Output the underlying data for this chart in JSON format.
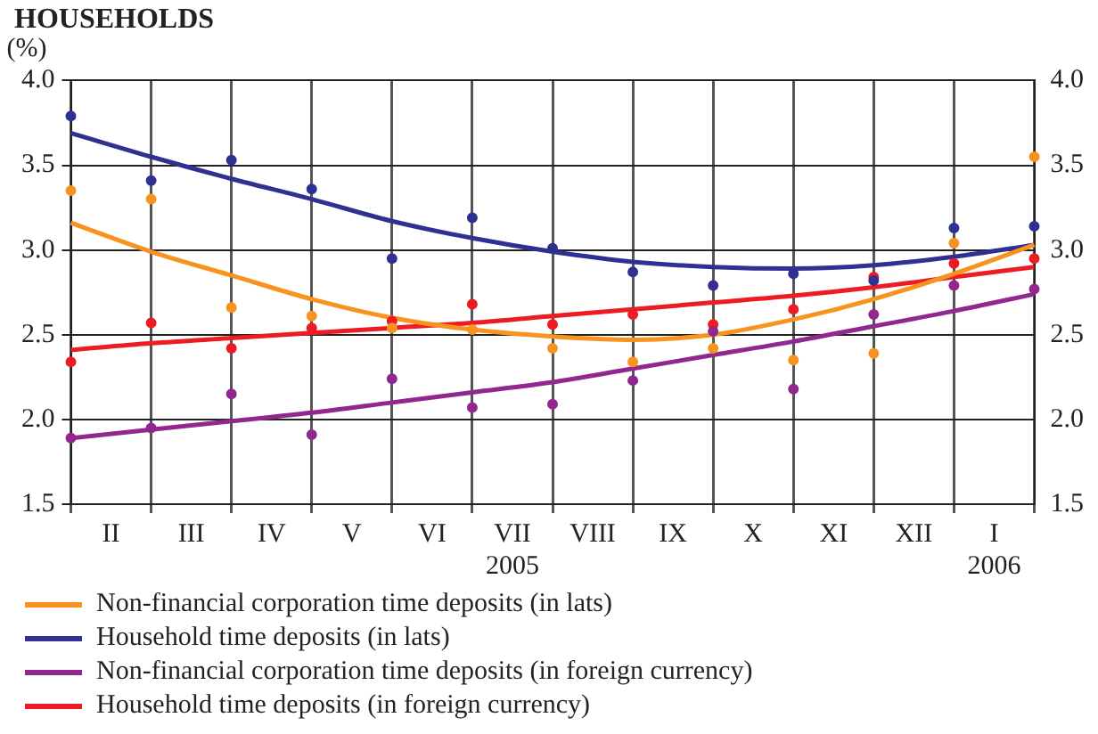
{
  "chart_data": {
    "type": "scatter",
    "title": "HOUSEHOLDS",
    "ylabel": "(%)",
    "categories": [
      null,
      "II",
      null,
      "III",
      null,
      "IV",
      null,
      "V",
      null,
      "VI",
      null,
      "VII\n2005",
      null,
      "VIII",
      null,
      "IX",
      null,
      "X",
      null,
      "XI",
      null,
      "XII",
      null,
      "I\n2006",
      null
    ],
    "ylim": [
      1.5,
      4
    ],
    "yticks": [
      {
        "value": 1.5,
        "label": "1.5"
      },
      {
        "value": 2,
        "label": "2.0"
      },
      {
        "value": 2.5,
        "label": "2.5"
      },
      {
        "value": 3,
        "label": "3.0"
      },
      {
        "value": 3.5,
        "label": "3.5"
      },
      {
        "value": 4,
        "label": "4.0"
      }
    ],
    "y2lim": [
      1.5,
      4
    ],
    "y2ticks": [
      {
        "value": 1.5,
        "label": "1.5"
      },
      {
        "value": 2,
        "label": "2.0"
      },
      {
        "value": 2.5,
        "label": "2.5"
      },
      {
        "value": 3,
        "label": "3.0"
      },
      {
        "value": 3.5,
        "label": "3.5"
      },
      {
        "value": 4,
        "label": "4.0"
      }
    ],
    "grid": true,
    "legend": "bottom",
    "series": [
      {
        "color": "#f7931e",
        "values": [
          3.35,
          null,
          3.3,
          null,
          2.66,
          null,
          2.61,
          null,
          2.54,
          null,
          2.53,
          null,
          2.42,
          null,
          2.34,
          null,
          2.42,
          null,
          2.35,
          null,
          2.39,
          null,
          3.04,
          null,
          3.55
        ]
      },
      {
        "color": "#2e3192",
        "values": [
          3.79,
          null,
          3.41,
          null,
          3.53,
          null,
          3.36,
          null,
          2.95,
          null,
          3.19,
          null,
          3.01,
          null,
          2.87,
          null,
          2.79,
          null,
          2.86,
          null,
          2.82,
          null,
          3.13,
          null,
          3.14
        ]
      },
      {
        "color": "#92278f",
        "values": [
          1.89,
          null,
          1.95,
          null,
          2.15,
          null,
          1.91,
          null,
          2.24,
          null,
          2.07,
          null,
          2.09,
          null,
          2.23,
          null,
          2.52,
          null,
          2.18,
          null,
          2.62,
          null,
          2.79,
          null,
          2.77
        ]
      },
      {
        "color": "#ed1c24",
        "values": [
          2.34,
          null,
          2.57,
          null,
          2.42,
          null,
          2.54,
          null,
          2.58,
          null,
          2.68,
          null,
          2.56,
          null,
          2.62,
          null,
          2.56,
          null,
          2.65,
          null,
          2.84,
          null,
          2.92,
          null,
          2.95
        ]
      },
      {
        "type": "line",
        "name": "Non-financial corporation time deposits (in lats)",
        "color": "#f7931e",
        "values": [
          3.16,
          null,
          2.99,
          null,
          2.85,
          null,
          2.71,
          null,
          2.6,
          null,
          2.53,
          null,
          2.49,
          null,
          2.47,
          null,
          2.5,
          null,
          2.59,
          null,
          2.71,
          null,
          2.86,
          null,
          3.03
        ]
      },
      {
        "type": "line",
        "name": "Household time deposits (in lats)",
        "color": "#2e3192",
        "values": [
          3.69,
          null,
          3.55,
          null,
          3.42,
          null,
          3.3,
          null,
          3.17,
          null,
          3.07,
          null,
          2.99,
          null,
          2.93,
          null,
          2.9,
          null,
          2.89,
          null,
          2.91,
          null,
          2.96,
          null,
          3.03
        ]
      },
      {
        "type": "line",
        "name": "Non-financial corporation time deposits (in foreign currency)",
        "color": "#92278f",
        "values": [
          1.89,
          null,
          1.94,
          null,
          1.99,
          null,
          2.04,
          null,
          2.1,
          null,
          2.16,
          null,
          2.22,
          null,
          2.3,
          null,
          2.38,
          null,
          2.46,
          null,
          2.55,
          null,
          2.64,
          null,
          2.74
        ]
      },
      {
        "type": "line",
        "name": "Household time deposits (in foreign currency)",
        "color": "#ed1c24",
        "values": [
          2.41,
          null,
          2.45,
          null,
          2.48,
          null,
          2.51,
          null,
          2.54,
          null,
          2.57,
          null,
          2.61,
          null,
          2.65,
          null,
          2.69,
          null,
          2.73,
          null,
          2.78,
          null,
          2.84,
          null,
          2.9
        ]
      }
    ]
  }
}
